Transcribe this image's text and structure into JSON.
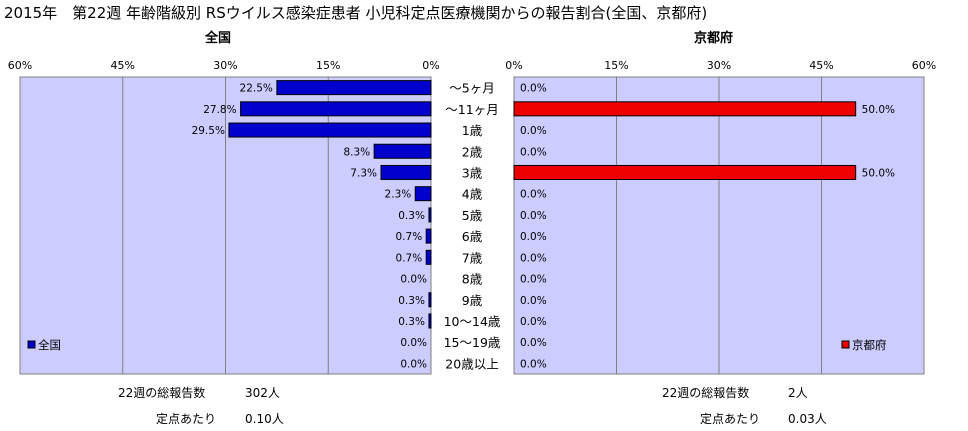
{
  "title": "2015年　第22週 年齢階級別 RSウイルス感染症患者 小児科定点医療機関からの報告割合(全国、京都府)",
  "age_groups": [
    "～5ヶ月",
    "～11ヶ月",
    "1歳",
    "2歳",
    "3歳",
    "4歳",
    "5歳",
    "6歳",
    "7歳",
    "8歳",
    "9歳",
    "10～14歳",
    "15～19歳",
    "20歳以上"
  ],
  "chart_data": [
    {
      "type": "bar",
      "title": "全国",
      "orientation": "horizontal-reversed",
      "categories": [
        "～5ヶ月",
        "～11ヶ月",
        "1歳",
        "2歳",
        "3歳",
        "4歳",
        "5歳",
        "6歳",
        "7歳",
        "8歳",
        "9歳",
        "10～14歳",
        "15～19歳",
        "20歳以上"
      ],
      "series": [
        {
          "name": "全国",
          "values": [
            22.5,
            27.8,
            29.5,
            8.3,
            7.3,
            2.3,
            0.3,
            0.7,
            0.7,
            0.0,
            0.3,
            0.3,
            0.0,
            0.0
          ],
          "color": "#0000cc"
        }
      ],
      "xlim": [
        0,
        60
      ],
      "ticks": [
        "60%",
        "45%",
        "30%",
        "15%",
        "0%"
      ],
      "value_suffix": "%",
      "legend_position": "bottom-left",
      "grid": true
    },
    {
      "type": "bar",
      "title": "京都府",
      "orientation": "horizontal",
      "categories": [
        "～5ヶ月",
        "～11ヶ月",
        "1歳",
        "2歳",
        "3歳",
        "4歳",
        "5歳",
        "6歳",
        "7歳",
        "8歳",
        "9歳",
        "10～14歳",
        "15～19歳",
        "20歳以上"
      ],
      "series": [
        {
          "name": "京都府",
          "values": [
            0.0,
            50.0,
            0.0,
            0.0,
            50.0,
            0.0,
            0.0,
            0.0,
            0.0,
            0.0,
            0.0,
            0.0,
            0.0,
            0.0
          ],
          "color": "#ee0000"
        }
      ],
      "xlim": [
        0,
        60
      ],
      "ticks": [
        "0%",
        "15%",
        "30%",
        "45%",
        "60%"
      ],
      "value_suffix": "%",
      "legend_position": "bottom-right",
      "grid": true
    }
  ],
  "footer": {
    "national": {
      "total_label": "22週の総報告数",
      "total_value": "302人",
      "per_label": "定点あたり",
      "per_value": "0.10人"
    },
    "kyoto": {
      "total_label": "22週の総報告数",
      "total_value": "2人",
      "per_label": "定点あたり",
      "per_value": "0.03人"
    }
  },
  "colors": {
    "plot_bg": "#ccccff",
    "national_bar": "#0000cc",
    "kyoto_bar": "#ee0000"
  }
}
